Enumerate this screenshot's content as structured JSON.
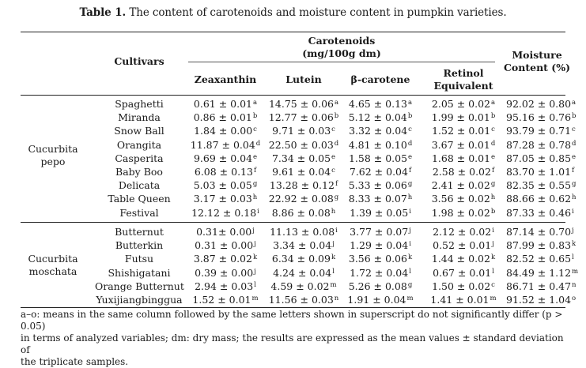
{
  "caption": {
    "label": "Table 1.",
    "text": " The content of carotenoids and moisture content in pumpkin varieties."
  },
  "headers": {
    "cultivars": "Cultivars",
    "carotenoids_line1": "Carotenoids",
    "carotenoids_line2": "(mg/100g dm)",
    "zeaxanthin": "Zeaxanthin",
    "lutein": "Lutein",
    "beta_carotene": "β-carotene",
    "retinol_line1": "Retinol",
    "retinol_line2": "Equivalent",
    "moisture_line1": "Moisture",
    "moisture_line2": "Content (%)"
  },
  "groups": [
    {
      "name_line1": "Cucurbita",
      "name_line2": "pepo",
      "rows": [
        {
          "cultivar": "Spaghetti",
          "zeaxanthin": [
            "0.61 ± 0.01",
            "a"
          ],
          "lutein": [
            "14.75 ± 0.06",
            "a"
          ],
          "beta": [
            "4.65 ± 0.13",
            "a"
          ],
          "retinol": [
            "2.05 ± 0.02",
            "a"
          ],
          "moisture": [
            "92.02 ± 0.80",
            "a"
          ]
        },
        {
          "cultivar": "Miranda",
          "zeaxanthin": [
            "0.86 ± 0.01",
            "b"
          ],
          "lutein": [
            "12.77 ± 0.06",
            "b"
          ],
          "beta": [
            "5.12 ± 0.04",
            "b"
          ],
          "retinol": [
            "1.99 ± 0.01",
            "b"
          ],
          "moisture": [
            "95.16 ± 0.76",
            "b"
          ]
        },
        {
          "cultivar": "Snow Ball",
          "zeaxanthin": [
            "1.84 ± 0.00",
            "c"
          ],
          "lutein": [
            "9.71 ± 0.03",
            "c"
          ],
          "beta": [
            "3.32 ± 0.04",
            "c"
          ],
          "retinol": [
            "1.52 ± 0.01",
            "c"
          ],
          "moisture": [
            "93.79 ± 0.71",
            "c"
          ]
        },
        {
          "cultivar": "Orangita",
          "zeaxanthin": [
            "11.87 ± 0.04",
            "d"
          ],
          "lutein": [
            "22.50 ± 0.03",
            "d"
          ],
          "beta": [
            "4.81 ± 0.10",
            "d"
          ],
          "retinol": [
            "3.67 ± 0.01",
            "d"
          ],
          "moisture": [
            "87.28 ± 0.78",
            "d"
          ]
        },
        {
          "cultivar": "Casperita",
          "zeaxanthin": [
            "9.69 ± 0.04",
            "e"
          ],
          "lutein": [
            "7.34 ± 0.05",
            "e"
          ],
          "beta": [
            "1.58 ± 0.05",
            "e"
          ],
          "retinol": [
            "1.68 ± 0.01",
            "e"
          ],
          "moisture": [
            "87.05 ± 0.85",
            "e"
          ]
        },
        {
          "cultivar": "Baby Boo",
          "zeaxanthin": [
            "6.08 ± 0.13",
            "f"
          ],
          "lutein": [
            "9.61 ± 0.04",
            "c"
          ],
          "beta": [
            "7.62 ± 0.04",
            "f"
          ],
          "retinol": [
            "2.58 ± 0.02",
            "f"
          ],
          "moisture": [
            "83.70 ± 1.01",
            "f"
          ]
        },
        {
          "cultivar": "Delicata",
          "zeaxanthin": [
            "5.03 ± 0.05",
            "g"
          ],
          "lutein": [
            "13.28 ± 0.12",
            "f"
          ],
          "beta": [
            "5.33 ± 0.06",
            "g"
          ],
          "retinol": [
            "2.41 ± 0.02",
            "g"
          ],
          "moisture": [
            "82.35 ± 0.55",
            "g"
          ]
        },
        {
          "cultivar": "Table Queen",
          "zeaxanthin": [
            "3.17 ± 0.03",
            "h"
          ],
          "lutein": [
            "22.92 ± 0.08",
            "g"
          ],
          "beta": [
            "8.33 ± 0.07",
            "h"
          ],
          "retinol": [
            "3.56 ± 0.02",
            "h"
          ],
          "moisture": [
            "88.66 ± 0.62",
            "h"
          ]
        },
        {
          "cultivar": "Festival",
          "zeaxanthin": [
            "12.12 ± 0.18",
            "i"
          ],
          "lutein": [
            "8.86 ± 0.08",
            "h"
          ],
          "beta": [
            "1.39 ± 0.05",
            "i"
          ],
          "retinol": [
            "1.98 ± 0.02",
            "b"
          ],
          "moisture": [
            "87.33 ± 0.46",
            "i"
          ]
        }
      ]
    },
    {
      "name_line1": "Cucurbita",
      "name_line2": "moschata",
      "rows": [
        {
          "cultivar": "Butternut",
          "zeaxanthin": [
            "0.31± 0.00",
            "j"
          ],
          "lutein": [
            "11.13 ± 0.08",
            "i"
          ],
          "beta": [
            "3.77 ± 0.07",
            "j"
          ],
          "retinol": [
            "2.12 ± 0.02",
            "i"
          ],
          "moisture": [
            "87.14 ± 0.70",
            "j"
          ]
        },
        {
          "cultivar": "Butterkin",
          "zeaxanthin": [
            "0.31 ± 0.00",
            "j"
          ],
          "lutein": [
            "3.34 ± 0.04",
            "j"
          ],
          "beta": [
            "1.29 ± 0.04",
            "i"
          ],
          "retinol": [
            "0.52 ± 0.01",
            "j"
          ],
          "moisture": [
            "87.99 ± 0.83",
            "k"
          ]
        },
        {
          "cultivar": "Futsu",
          "zeaxanthin": [
            "3.87 ± 0.02",
            "k"
          ],
          "lutein": [
            "6.34 ± 0.09",
            "k"
          ],
          "beta": [
            "3.56 ± 0.06",
            "k"
          ],
          "retinol": [
            "1.44 ± 0.02",
            "k"
          ],
          "moisture": [
            "82.52 ± 0.65",
            "l"
          ]
        },
        {
          "cultivar": "Shishigatani",
          "zeaxanthin": [
            "0.39 ± 0.00",
            "j"
          ],
          "lutein": [
            "4.24 ± 0.04",
            "l"
          ],
          "beta": [
            "1.72 ± 0.04",
            "l"
          ],
          "retinol": [
            "0.67 ± 0.01",
            "l"
          ],
          "moisture": [
            "84.49 ± 1.12",
            "m"
          ]
        },
        {
          "cultivar": "Orange Butternut",
          "zeaxanthin": [
            "2.94 ± 0.03",
            "l"
          ],
          "lutein": [
            "4.59 ± 0.02",
            "m"
          ],
          "beta": [
            "5.26 ± 0.08",
            "g"
          ],
          "retinol": [
            "1.50 ± 0.02",
            "c"
          ],
          "moisture": [
            "86.71 ± 0.47",
            "n"
          ]
        },
        {
          "cultivar": "Yuxijiangbinggua",
          "zeaxanthin": [
            "1.52 ± 0.01",
            "m"
          ],
          "lutein": [
            "11.56 ± 0.03",
            "n"
          ],
          "beta": [
            "1.91 ± 0.04",
            "m"
          ],
          "retinol": [
            "1.41 ± 0.01",
            "m"
          ],
          "moisture": [
            "91.52 ± 1.04",
            "o"
          ]
        }
      ]
    }
  ],
  "footnote": {
    "line1": "a–o: means in the same column followed by the same letters shown in superscript do not significantly differ (p > 0.05)",
    "line2": "in terms of analyzed variables; dm: dry mass; the results are expressed as the mean values ± standard deviation of",
    "line3": "the triplicate samples."
  }
}
